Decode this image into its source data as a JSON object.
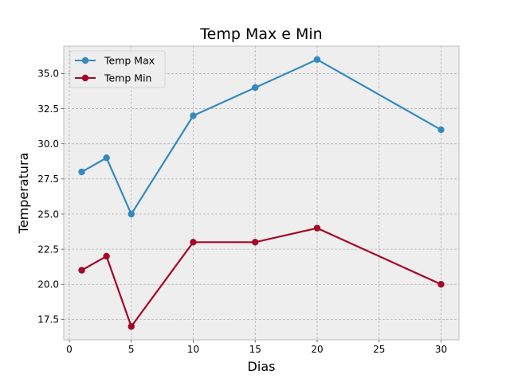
{
  "chart_data": {
    "type": "line",
    "title": "Temp Max e Min",
    "xlabel": "Dias",
    "ylabel": "Temperatura",
    "x": [
      1,
      3,
      5,
      10,
      15,
      20,
      30
    ],
    "series": [
      {
        "name": "Temp Max",
        "color": "#348abd",
        "values": [
          28,
          29,
          25,
          32,
          34,
          36,
          31
        ]
      },
      {
        "name": "Temp Min",
        "color": "#a60628",
        "values": [
          21,
          22,
          17,
          23,
          23,
          24,
          20
        ]
      }
    ],
    "xlim": [
      -0.45,
      31.45
    ],
    "ylim": [
      16.05,
      36.95
    ],
    "xticks": [
      0,
      5,
      10,
      15,
      20,
      25,
      30
    ],
    "xtick_labels": [
      "0",
      "5",
      "10",
      "15",
      "20",
      "25",
      "30"
    ],
    "yticks": [
      17.5,
      20.0,
      22.5,
      25.0,
      27.5,
      30.0,
      32.5,
      35.0
    ],
    "ytick_labels": [
      "17.5",
      "20.0",
      "22.5",
      "25.0",
      "27.5",
      "30.0",
      "32.5",
      "35.0"
    ],
    "grid": true,
    "legend_position": "top-left",
    "background_color": "#eeeeee",
    "grid_color": "#b2b2b2"
  }
}
